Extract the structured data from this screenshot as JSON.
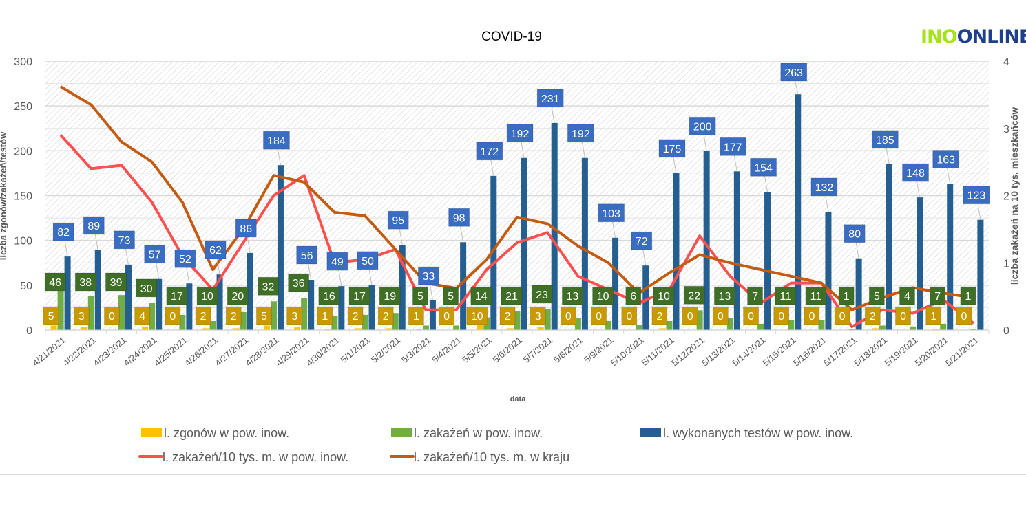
{
  "logo": {
    "part1": "INO",
    "part2": "ONLINE",
    "colors": {
      "part1": "#a4e21a",
      "part2": "#1e3f8c"
    }
  },
  "chart_data": {
    "type": "bar",
    "title": "COVID-19",
    "xlabel": "data",
    "ylabel": "liczba zgonów/zakażeń/testów",
    "y2label": "liczba zakażeń na 10 tys. mieszkańców",
    "ylim": [
      0,
      300
    ],
    "y2lim": [
      0,
      4
    ],
    "yticks": [
      "0",
      "50",
      "100",
      "150",
      "200",
      "250",
      "300"
    ],
    "y2ticks": [
      "0",
      "1",
      "2",
      "3",
      "4"
    ],
    "grid": true,
    "legend_position": "bottom",
    "categories": [
      "4/21/2021",
      "4/22/2021",
      "4/23/2021",
      "4/24/2021",
      "4/25/2021",
      "4/26/2021",
      "4/27/2021",
      "4/28/2021",
      "4/29/2021",
      "4/30/2021",
      "5/1/2021",
      "5/2/2021",
      "5/3/2021",
      "5/4/2021",
      "5/5/2021",
      "5/6/2021",
      "5/7/2021",
      "5/8/2021",
      "5/9/2021",
      "5/10/2021",
      "5/11/2021",
      "5/12/2021",
      "5/13/2021",
      "5/14/2021",
      "5/15/2021",
      "5/16/2021",
      "5/17/2021",
      "5/18/2021",
      "5/19/2021",
      "5/20/2021",
      "5/21/2021"
    ],
    "series": [
      {
        "name": "l. zgonów w pow. inow.",
        "type": "bar",
        "axis": "left",
        "color": "#ffc000",
        "label_color": "#c89a00",
        "values": [
          5,
          3,
          0,
          4,
          0,
          2,
          2,
          5,
          3,
          1,
          2,
          2,
          1,
          0,
          10,
          2,
          3,
          0,
          0,
          0,
          2,
          0,
          0,
          0,
          0,
          0,
          0,
          2,
          0,
          1,
          0
        ]
      },
      {
        "name": "l. zakażeń w pow. inow.",
        "type": "bar",
        "axis": "left",
        "color": "#70ad47",
        "label_color": "#3f6f26",
        "values": [
          46,
          38,
          39,
          30,
          17,
          10,
          20,
          32,
          36,
          16,
          17,
          19,
          5,
          5,
          14,
          21,
          23,
          13,
          10,
          6,
          10,
          22,
          13,
          7,
          11,
          11,
          1,
          5,
          4,
          7,
          1
        ]
      },
      {
        "name": "l. wykonanych testów w pow. inow.",
        "type": "bar",
        "axis": "left",
        "color": "#255e91",
        "label_color": "#3a6cc2",
        "values": [
          82,
          89,
          73,
          57,
          52,
          62,
          86,
          184,
          56,
          49,
          50,
          95,
          33,
          98,
          172,
          192,
          231,
          192,
          103,
          72,
          175,
          200,
          177,
          154,
          263,
          132,
          80,
          185,
          148,
          163,
          123
        ]
      },
      {
        "name": "l. zakażeń/10 tys. m. w pow. inow.",
        "type": "line",
        "axis": "right",
        "color": "#ff5050",
        "values": [
          2.9,
          2.4,
          2.45,
          1.9,
          1.1,
          0.6,
          1.3,
          2.0,
          2.3,
          1.0,
          1.05,
          1.2,
          0.3,
          0.3,
          0.9,
          1.3,
          1.45,
          0.8,
          0.6,
          0.4,
          0.6,
          1.4,
          0.8,
          0.4,
          0.7,
          0.7,
          0.05,
          0.3,
          0.25,
          0.45,
          0.1
        ]
      },
      {
        "name": "l. zakażeń/10 tys. m. w kraju",
        "type": "line",
        "axis": "right",
        "color": "#c55a11",
        "values": [
          3.62,
          3.35,
          2.8,
          2.5,
          1.9,
          0.9,
          1.5,
          2.3,
          2.2,
          1.75,
          1.7,
          1.2,
          0.7,
          0.62,
          1.05,
          1.68,
          1.58,
          1.25,
          1.0,
          0.55,
          0.85,
          1.12,
          1.0,
          0.9,
          0.8,
          0.7,
          0.3,
          0.48,
          0.63,
          0.55,
          0.48
        ]
      }
    ]
  }
}
